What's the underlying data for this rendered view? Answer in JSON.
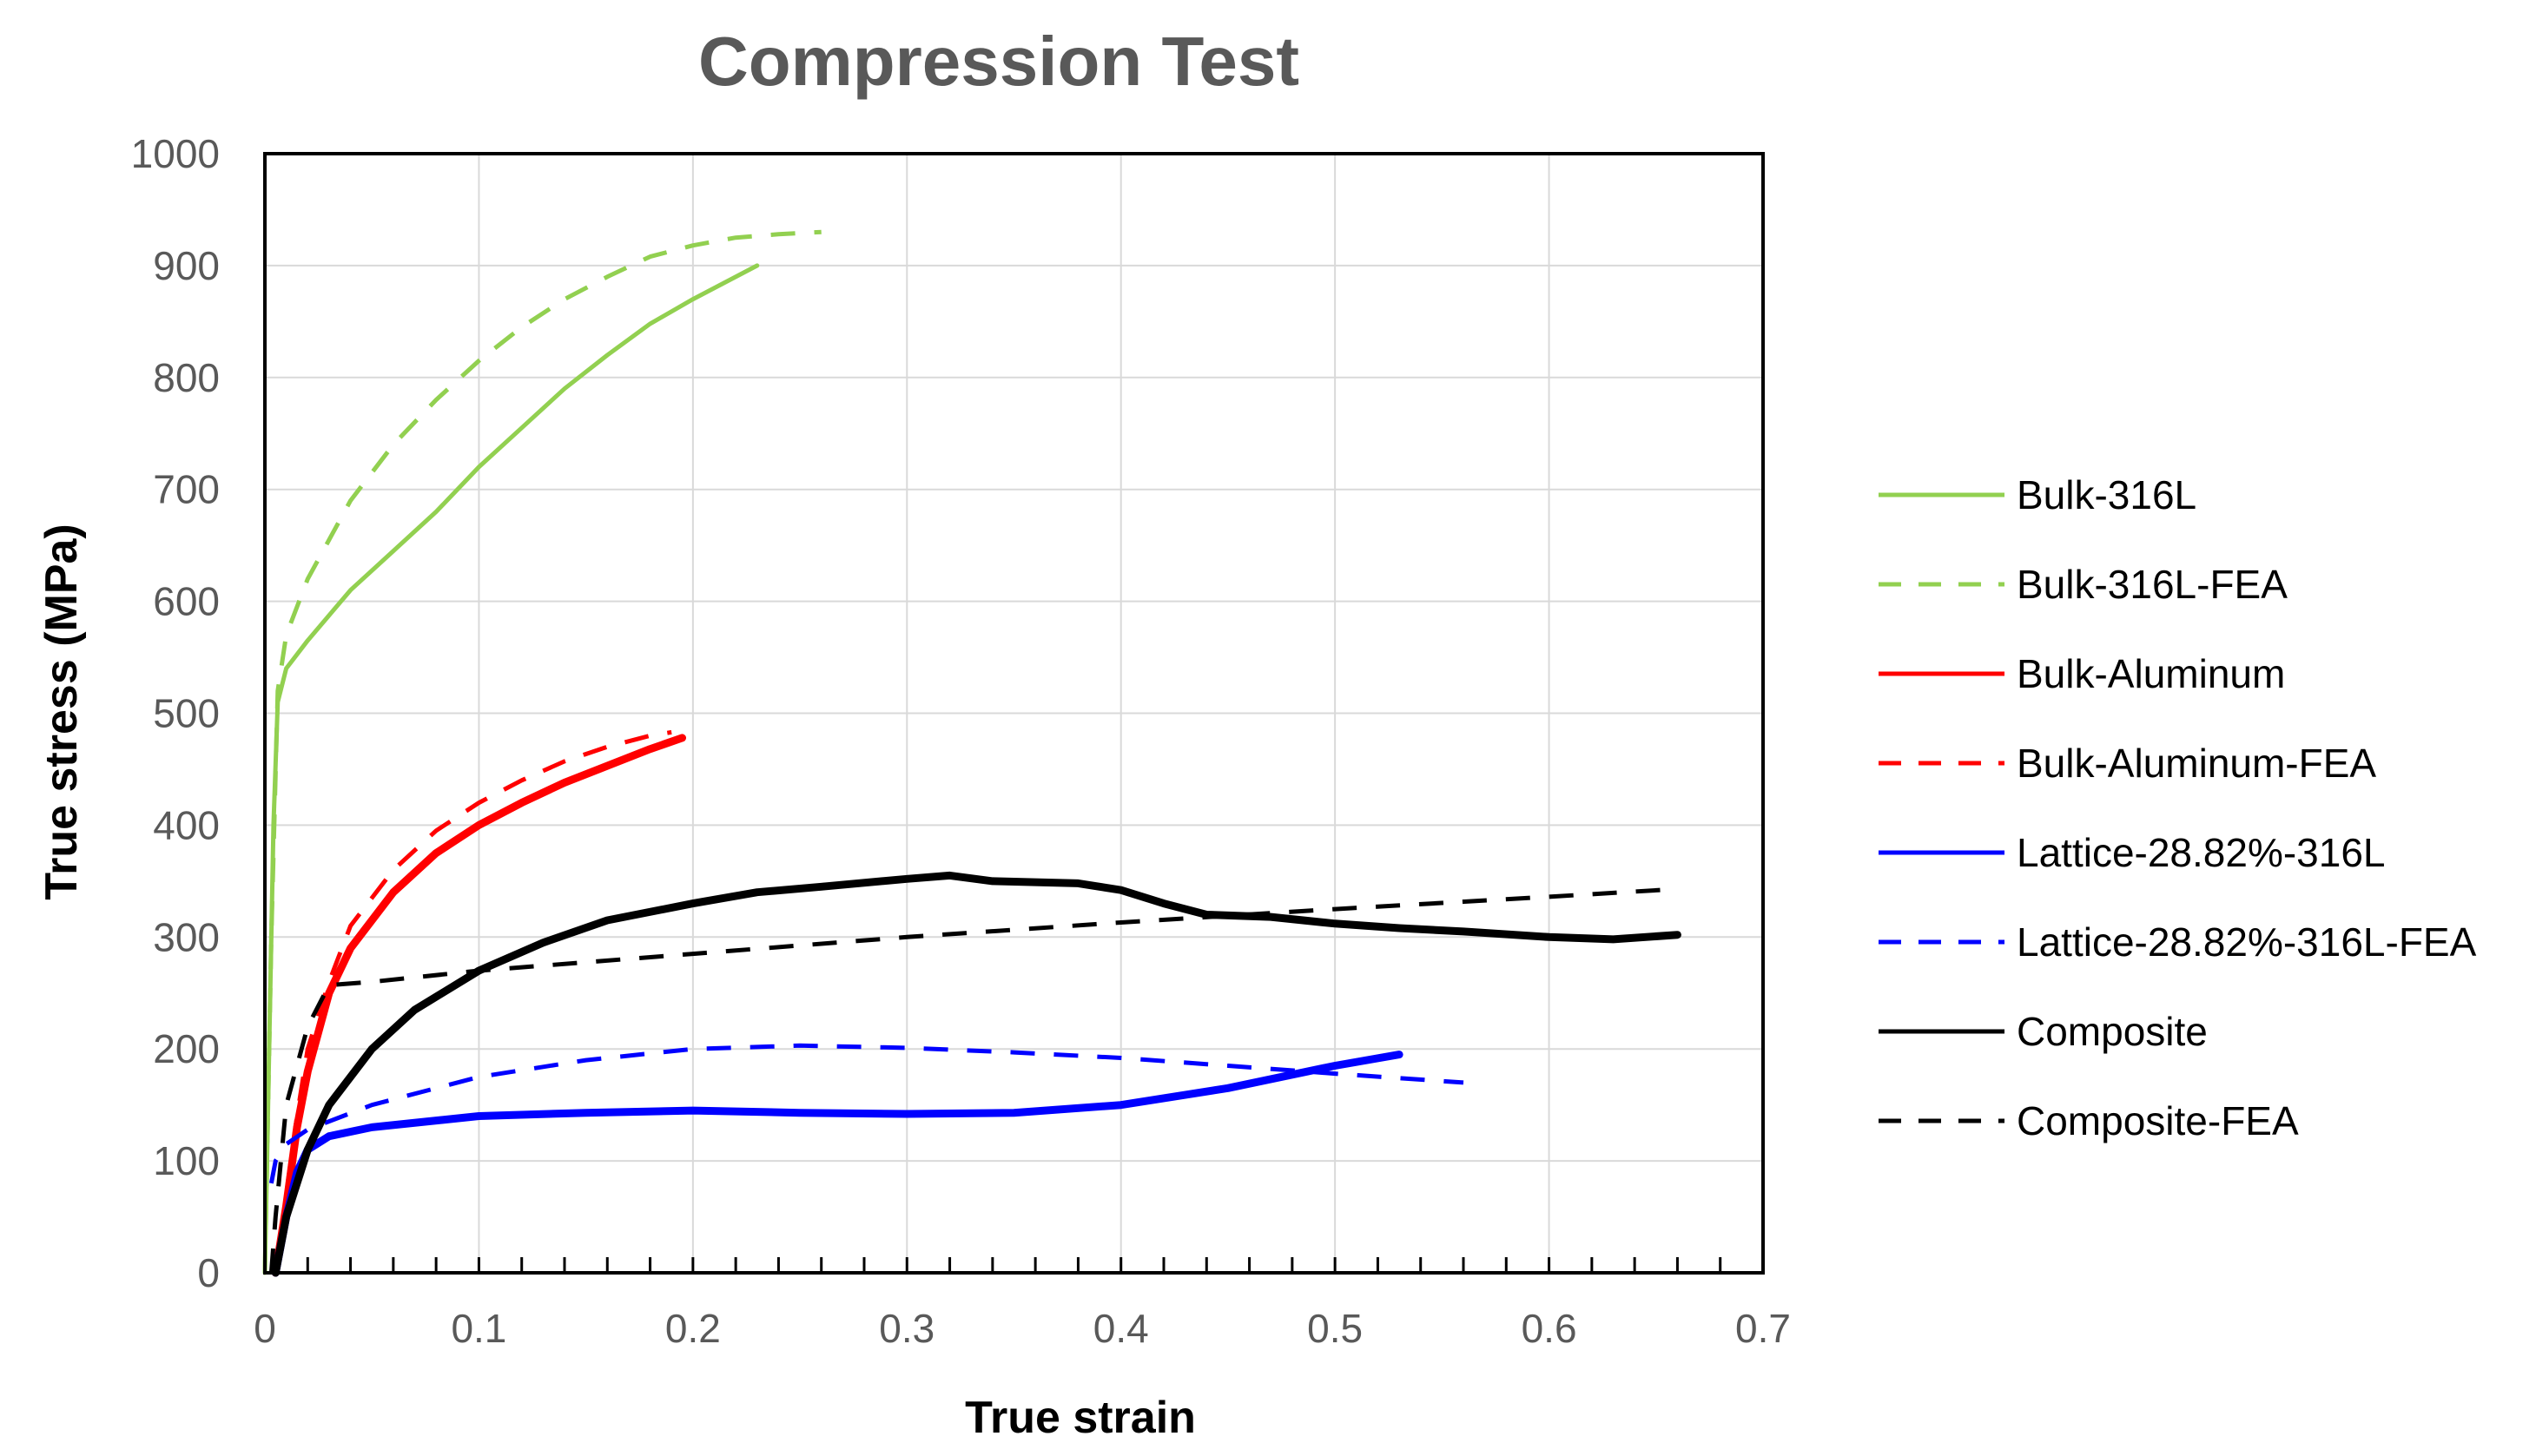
{
  "chart_data": {
    "type": "line",
    "title": "Compression Test",
    "xlabel": "True strain",
    "ylabel": "True stress (MPa)",
    "xlim": [
      0,
      0.7
    ],
    "ylim": [
      0,
      1000
    ],
    "xticks": [
      "0",
      "0.1",
      "0.2",
      "0.3",
      "0.4",
      "0.5",
      "0.6",
      "0.7"
    ],
    "yticks": [
      "0",
      "100",
      "200",
      "300",
      "400",
      "500",
      "600",
      "700",
      "800",
      "900",
      "1000"
    ],
    "grid": true,
    "legend_position": "right",
    "series": [
      {
        "name": "Bulk-316L",
        "color": "#92d050",
        "dash": "solid",
        "points": [
          [
            0,
            0
          ],
          [
            0.002,
            200
          ],
          [
            0.004,
            400
          ],
          [
            0.006,
            510
          ],
          [
            0.01,
            540
          ],
          [
            0.02,
            565
          ],
          [
            0.04,
            610
          ],
          [
            0.06,
            645
          ],
          [
            0.08,
            680
          ],
          [
            0.1,
            720
          ],
          [
            0.12,
            755
          ],
          [
            0.14,
            790
          ],
          [
            0.16,
            820
          ],
          [
            0.18,
            848
          ],
          [
            0.2,
            870
          ],
          [
            0.23,
            900
          ]
        ]
      },
      {
        "name": "Bulk-316L-FEA",
        "color": "#92d050",
        "dash": "dashed",
        "points": [
          [
            0,
            0
          ],
          [
            0.003,
            300
          ],
          [
            0.006,
            520
          ],
          [
            0.01,
            570
          ],
          [
            0.02,
            620
          ],
          [
            0.04,
            690
          ],
          [
            0.06,
            740
          ],
          [
            0.08,
            780
          ],
          [
            0.1,
            815
          ],
          [
            0.12,
            845
          ],
          [
            0.14,
            870
          ],
          [
            0.16,
            890
          ],
          [
            0.18,
            908
          ],
          [
            0.2,
            918
          ],
          [
            0.22,
            925
          ],
          [
            0.24,
            928
          ],
          [
            0.26,
            930
          ]
        ]
      },
      {
        "name": "Bulk-Aluminum",
        "color": "#ff0000",
        "dash": "solid",
        "points": [
          [
            0.005,
            0
          ],
          [
            0.01,
            60
          ],
          [
            0.015,
            130
          ],
          [
            0.02,
            180
          ],
          [
            0.03,
            250
          ],
          [
            0.04,
            290
          ],
          [
            0.06,
            340
          ],
          [
            0.08,
            375
          ],
          [
            0.1,
            400
          ],
          [
            0.12,
            420
          ],
          [
            0.14,
            438
          ],
          [
            0.16,
            453
          ],
          [
            0.18,
            468
          ],
          [
            0.195,
            478
          ]
        ]
      },
      {
        "name": "Bulk-Aluminum-FEA",
        "color": "#ff0000",
        "dash": "dashed",
        "points": [
          [
            0.005,
            0
          ],
          [
            0.01,
            70
          ],
          [
            0.015,
            140
          ],
          [
            0.02,
            200
          ],
          [
            0.03,
            260
          ],
          [
            0.04,
            310
          ],
          [
            0.06,
            360
          ],
          [
            0.08,
            395
          ],
          [
            0.1,
            420
          ],
          [
            0.12,
            440
          ],
          [
            0.14,
            457
          ],
          [
            0.16,
            470
          ],
          [
            0.18,
            480
          ],
          [
            0.19,
            483
          ]
        ]
      },
      {
        "name": "Lattice-28.82%-316L",
        "color": "#0000ff",
        "dash": "solid",
        "points": [
          [
            0.005,
            0
          ],
          [
            0.01,
            50
          ],
          [
            0.015,
            90
          ],
          [
            0.02,
            110
          ],
          [
            0.03,
            122
          ],
          [
            0.05,
            130
          ],
          [
            0.1,
            140
          ],
          [
            0.15,
            143
          ],
          [
            0.2,
            145
          ],
          [
            0.25,
            143
          ],
          [
            0.3,
            142
          ],
          [
            0.35,
            143
          ],
          [
            0.4,
            150
          ],
          [
            0.45,
            165
          ],
          [
            0.5,
            185
          ],
          [
            0.53,
            195
          ]
        ]
      },
      {
        "name": "Lattice-28.82%-316L-FEA",
        "color": "#0000ff",
        "dash": "dashed",
        "points": [
          [
            0.003,
            80
          ],
          [
            0.005,
            100
          ],
          [
            0.01,
            115
          ],
          [
            0.02,
            128
          ],
          [
            0.05,
            150
          ],
          [
            0.1,
            175
          ],
          [
            0.15,
            190
          ],
          [
            0.2,
            200
          ],
          [
            0.25,
            203
          ],
          [
            0.3,
            201
          ],
          [
            0.35,
            197
          ],
          [
            0.4,
            192
          ],
          [
            0.45,
            185
          ],
          [
            0.5,
            178
          ],
          [
            0.56,
            170
          ]
        ]
      },
      {
        "name": "Composite",
        "color": "#000000",
        "dash": "solid",
        "points": [
          [
            0.005,
            0
          ],
          [
            0.01,
            50
          ],
          [
            0.02,
            110
          ],
          [
            0.03,
            150
          ],
          [
            0.05,
            200
          ],
          [
            0.07,
            235
          ],
          [
            0.1,
            270
          ],
          [
            0.13,
            295
          ],
          [
            0.16,
            315
          ],
          [
            0.2,
            330
          ],
          [
            0.23,
            340
          ],
          [
            0.26,
            345
          ],
          [
            0.3,
            352
          ],
          [
            0.32,
            355
          ],
          [
            0.34,
            350
          ],
          [
            0.38,
            348
          ],
          [
            0.4,
            342
          ],
          [
            0.42,
            330
          ],
          [
            0.44,
            320
          ],
          [
            0.47,
            318
          ],
          [
            0.5,
            312
          ],
          [
            0.53,
            308
          ],
          [
            0.56,
            305
          ],
          [
            0.6,
            300
          ],
          [
            0.63,
            298
          ],
          [
            0.66,
            302
          ]
        ]
      },
      {
        "name": "Composite-FEA",
        "color": "#000000",
        "dash": "dashed",
        "points": [
          [
            0.003,
            0
          ],
          [
            0.005,
            50
          ],
          [
            0.01,
            150
          ],
          [
            0.02,
            220
          ],
          [
            0.03,
            257
          ],
          [
            0.05,
            260
          ],
          [
            0.1,
            270
          ],
          [
            0.2,
            285
          ],
          [
            0.3,
            300
          ],
          [
            0.4,
            313
          ],
          [
            0.5,
            325
          ],
          [
            0.6,
            336
          ],
          [
            0.66,
            343
          ]
        ]
      }
    ]
  }
}
